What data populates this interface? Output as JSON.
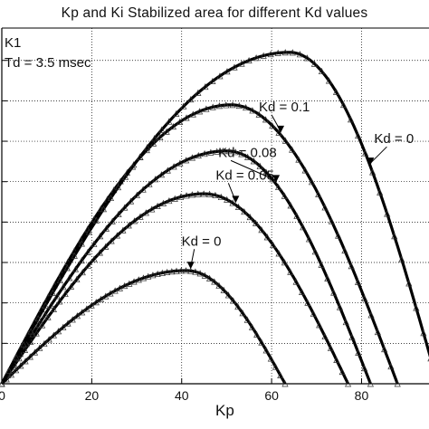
{
  "chart_data": {
    "type": "line",
    "title": "Kp and Ki Stabilized area for different Kd values",
    "xlabel": "Kp",
    "ylabel": "",
    "xlim": [
      0,
      95
    ],
    "ylim": [
      0,
      440
    ],
    "x_ticks": [
      0,
      20,
      40,
      60,
      80
    ],
    "grid": true,
    "inset_text": [
      "K1",
      "Td = 3.5 msec"
    ],
    "series": [
      {
        "name": "Kd = 0",
        "peak_x": 41,
        "peak_y": 140,
        "end_x": 63
      },
      {
        "name": "Kd = 0.05",
        "peak_x": 45,
        "peak_y": 235,
        "end_x": 77
      },
      {
        "name": "Kd = 0.08",
        "peak_x": 50,
        "peak_y": 288,
        "end_x": 82
      },
      {
        "name": "Kd = 0.1",
        "peak_x": 51,
        "peak_y": 345,
        "end_x": 88
      },
      {
        "name": "Kd = 0",
        "peak_x": 64,
        "peak_y": 410,
        "end_x": 97
      }
    ],
    "annotations": [
      {
        "text": "Kd = 0",
        "target": 0,
        "at_x": 42
      },
      {
        "text": "Kd = 0.05",
        "target": 1,
        "at_x": 52
      },
      {
        "text": "Kd = 0.08",
        "target": 2,
        "at_x": 61
      },
      {
        "text": "Kd = 0.1",
        "target": 3,
        "at_x": 62
      },
      {
        "text": "Kd = 0",
        "target": 4,
        "at_x": 82
      }
    ]
  }
}
